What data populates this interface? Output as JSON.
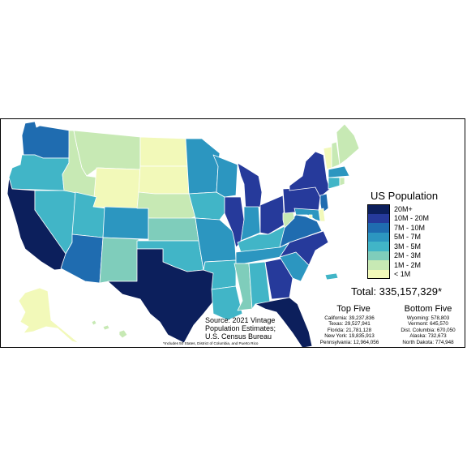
{
  "legend": {
    "title": "US Population",
    "bins": [
      {
        "label": "20M+",
        "color": "#0c1f5c"
      },
      {
        "label": "10M - 20M",
        "color": "#263a9b"
      },
      {
        "label": "7M - 10M",
        "color": "#1f6cb0"
      },
      {
        "label": "5M - 7M",
        "color": "#2c96c0"
      },
      {
        "label": "3M - 5M",
        "color": "#41b5c7"
      },
      {
        "label": "2M - 3M",
        "color": "#7fcdbb"
      },
      {
        "label": "1M - 2M",
        "color": "#c7e9b4"
      },
      {
        "label": "< 1M",
        "color": "#f2f9b9"
      }
    ]
  },
  "total": "Total: 335,157,329*",
  "top_five": {
    "title": "Top Five",
    "items": [
      "California: 39,237,836",
      "Texas: 29,527,941",
      "Florida: 21,781,128",
      "New York: 19,835,913",
      "Pennsylvania: 12,964,056"
    ]
  },
  "bottom_five": {
    "title": "Bottom Five",
    "items": [
      "Wyoming: 578,803",
      "Vermont: 645,570",
      "Dist. Columbia: 670,050",
      "Alaska: 732,673",
      "North Dakota: 774,948"
    ]
  },
  "source": [
    "Source: 2021 Vintage",
    "Population Estimates;",
    "U.S. Census Bureau"
  ],
  "footnote": "*Includes 50 States, District of Columbia, and Puerto Rico",
  "map": {
    "border_color": "#ffffff",
    "states": [
      {
        "name": "WA",
        "bin": 2
      },
      {
        "name": "OR",
        "bin": 4
      },
      {
        "name": "CA",
        "bin": 0
      },
      {
        "name": "NV",
        "bin": 4
      },
      {
        "name": "ID",
        "bin": 6
      },
      {
        "name": "MT",
        "bin": 6
      },
      {
        "name": "WY",
        "bin": 7
      },
      {
        "name": "UT",
        "bin": 4
      },
      {
        "name": "AZ",
        "bin": 2
      },
      {
        "name": "CO",
        "bin": 3
      },
      {
        "name": "NM",
        "bin": 5
      },
      {
        "name": "ND",
        "bin": 7
      },
      {
        "name": "SD",
        "bin": 7
      },
      {
        "name": "NE",
        "bin": 6
      },
      {
        "name": "KS",
        "bin": 5
      },
      {
        "name": "OK",
        "bin": 4
      },
      {
        "name": "TX",
        "bin": 0
      },
      {
        "name": "MN",
        "bin": 3
      },
      {
        "name": "IA",
        "bin": 4
      },
      {
        "name": "MO",
        "bin": 3
      },
      {
        "name": "AR",
        "bin": 4
      },
      {
        "name": "LA",
        "bin": 4
      },
      {
        "name": "WI",
        "bin": 3
      },
      {
        "name": "IL",
        "bin": 1
      },
      {
        "name": "MI",
        "bin": 1
      },
      {
        "name": "IN",
        "bin": 3
      },
      {
        "name": "OH",
        "bin": 1
      },
      {
        "name": "KY",
        "bin": 4
      },
      {
        "name": "TN",
        "bin": 3
      },
      {
        "name": "MS",
        "bin": 5
      },
      {
        "name": "AL",
        "bin": 4
      },
      {
        "name": "GA",
        "bin": 1
      },
      {
        "name": "FL",
        "bin": 0
      },
      {
        "name": "SC",
        "bin": 3
      },
      {
        "name": "NC",
        "bin": 1
      },
      {
        "name": "VA",
        "bin": 2
      },
      {
        "name": "WV",
        "bin": 6
      },
      {
        "name": "PA",
        "bin": 1
      },
      {
        "name": "NY",
        "bin": 1
      },
      {
        "name": "VT",
        "bin": 7
      },
      {
        "name": "NH",
        "bin": 6
      },
      {
        "name": "ME",
        "bin": 6
      },
      {
        "name": "MA",
        "bin": 3
      },
      {
        "name": "CT",
        "bin": 4
      },
      {
        "name": "RI",
        "bin": 6
      },
      {
        "name": "NJ",
        "bin": 2
      },
      {
        "name": "DE",
        "bin": 7
      },
      {
        "name": "MD",
        "bin": 3
      },
      {
        "name": "DC",
        "bin": 7
      },
      {
        "name": "AK",
        "bin": 7
      },
      {
        "name": "HI",
        "bin": 6
      },
      {
        "name": "PR",
        "bin": 4
      }
    ]
  }
}
